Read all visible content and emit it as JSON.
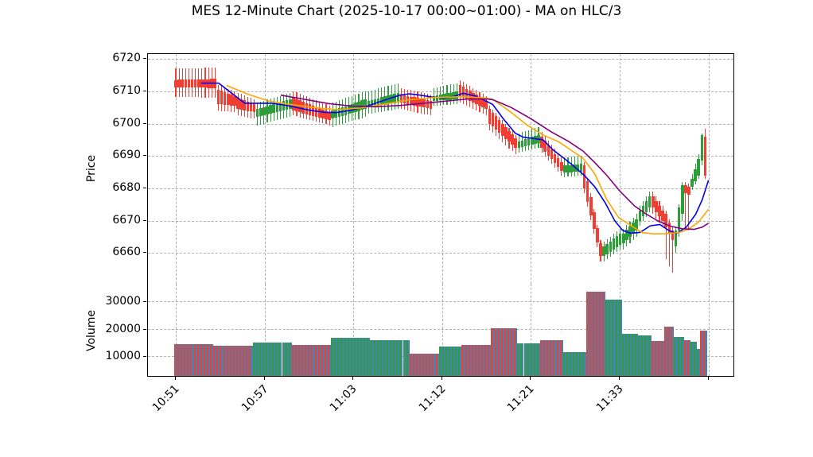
{
  "title": "MES 12-Minute Chart (2025-10-17 00:00~01:00) - MA on HLC/3",
  "price_axis": {
    "label": "Price",
    "ticks": [
      6720,
      6710,
      6700,
      6690,
      6680,
      6670,
      6660
    ],
    "ylim": [
      6650.5,
      6721.5
    ]
  },
  "volume_axis": {
    "label": "Volume",
    "ticks": [
      30000,
      20000,
      10000
    ],
    "ylim": [
      2900,
      36300
    ]
  },
  "x_axis": {
    "tick_labels": [
      "10:51",
      "10:57",
      "11:03",
      "11:12",
      "11:21",
      "11:33",
      ""
    ],
    "tick_indices": [
      0,
      27.17,
      54.33,
      81.5,
      108.67,
      135.83,
      163
    ]
  },
  "colors": {
    "up": "#2e9e3a",
    "down": "#f23d33",
    "volume_base": "#4682b4",
    "ma_fast": "#0000ee",
    "ma_mid": "#ffa500",
    "ma_slow": "#800080",
    "grid": "#b0b0b0",
    "text": "#000000"
  },
  "chart_data": {
    "type": "candlestick_volume",
    "title": "MES 12-Minute Chart (2025-10-17 00:00~01:00) - MA on HLC/3",
    "panels": [
      "Price",
      "Volume"
    ],
    "grid": true,
    "bars_total": 163,
    "price_runs": [
      {
        "n": 13,
        "c": "down",
        "b0": [
          6713.5,
          6711.3
        ],
        "b1": [
          6713.8,
          6711.0
        ],
        "wu": 3.5,
        "wd": 3.0
      },
      {
        "n": 6,
        "c": "down",
        "b0": [
          6710.5,
          6706.0
        ],
        "b1": [
          6708.5,
          6705.5
        ],
        "wu": 1.5,
        "wd": 2.0
      },
      {
        "n": 6,
        "c": "down",
        "b0": [
          6708.0,
          6704.5
        ],
        "b1": [
          6706.0,
          6703.5
        ],
        "wu": 1.5,
        "wd": 2.0
      },
      {
        "n": 11,
        "c": "up",
        "b0": [
          6704.5,
          6702.0
        ],
        "b1": [
          6707.5,
          6704.5
        ],
        "wu": 2.0,
        "wd": 2.5
      },
      {
        "n": 12,
        "c": "down",
        "b0": [
          6708.0,
          6704.0
        ],
        "b1": [
          6703.5,
          6701.0
        ],
        "wu": 2.0,
        "wd": 1.5
      },
      {
        "n": 11,
        "c": "up",
        "b0": [
          6704.0,
          6701.5
        ],
        "b1": [
          6707.5,
          6704.5
        ],
        "wu": 2.5,
        "wd": 2.5
      },
      {
        "n": 10,
        "c": "up",
        "b0": [
          6707.0,
          6705.0
        ],
        "b1": [
          6709.5,
          6706.5
        ],
        "wu": 3.0,
        "wd": 2.0
      },
      {
        "n": 10,
        "c": "down",
        "b0": [
          6709.0,
          6706.5
        ],
        "b1": [
          6707.0,
          6704.5
        ],
        "wu": 2.0,
        "wd": 2.0
      },
      {
        "n": 8,
        "c": "up",
        "b0": [
          6708.5,
          6707.0
        ],
        "b1": [
          6710.0,
          6707.5
        ],
        "wu": 2.5,
        "wd": 1.5
      },
      {
        "n": 9,
        "c": "down",
        "b0": [
          6712.0,
          6708.5
        ],
        "b1": [
          6707.0,
          6704.5
        ],
        "wu": 1.5,
        "wd": 2.0
      },
      {
        "n": 9,
        "c": "down",
        "b0": [
          6704.5,
          6700.0
        ],
        "b1": [
          6695.5,
          6692.5
        ],
        "wu": 1.0,
        "wd": 2.0
      },
      {
        "n": 7,
        "c": "up",
        "b0": [
          6694.5,
          6692.5
        ],
        "b1": [
          6696.5,
          6694.0
        ],
        "wu": 2.5,
        "wd": 1.5
      },
      {
        "n": 7,
        "c": "down",
        "b0": [
          6696.0,
          6692.5
        ],
        "b1": [
          6688.0,
          6685.5
        ],
        "wu": 1.5,
        "wd": 1.5
      },
      {
        "n": 6,
        "c": "up",
        "b0": [
          6687.0,
          6684.8
        ],
        "b1": [
          6687.5,
          6685.2
        ],
        "wu": 2.5,
        "wd": 1.3
      },
      {
        "n": 6,
        "c": "down",
        "b0": [
          6687.0,
          6680.0
        ],
        "b1": [
          6663.0,
          6659.0
        ],
        "wu": 1.0,
        "wd": 1.5
      },
      {
        "n": 6,
        "c": "up",
        "b0": [
          6662.0,
          6659.0
        ],
        "b1": [
          6666.0,
          6662.5
        ],
        "wu": 1.5,
        "wd": 1.5
      },
      {
        "n": 5,
        "c": "up",
        "b0": [
          6666.0,
          6663.0
        ],
        "b1": [
          6670.5,
          6667.0
        ],
        "wu": 1.5,
        "wd": 2.0
      },
      {
        "n": 4,
        "c": "up",
        "b0": [
          6673.0,
          6670.0
        ],
        "b1": [
          6677.5,
          6674.0
        ],
        "wu": 1.5,
        "wd": 1.5
      },
      {
        "n": 4,
        "c": "down",
        "b0": [
          6677.5,
          6674.0
        ],
        "b1": [
          6673.0,
          6670.0
        ],
        "wu": 1.5,
        "wd": 2.0
      },
      {
        "n": 3,
        "c": "down",
        "b0": [
          6672.0,
          6668.0
        ],
        "b1": [
          6667.0,
          6664.0
        ],
        "wu": 1.0,
        "wd": 10.0
      },
      {
        "n": 3,
        "c": "up",
        "b0": [
          6667.0,
          6662.0
        ],
        "b1": [
          6681.0,
          6672.0
        ],
        "wu": 1.0,
        "wd": 2.0
      },
      {
        "n": 2,
        "c": "down",
        "b0": [
          6681.0,
          6678.5
        ],
        "b1": [
          6680.5,
          6678.0
        ],
        "wu": 1.0,
        "wd": 11.0
      },
      {
        "n": 3,
        "c": "up",
        "b0": [
          6683.0,
          6680.5
        ],
        "b1": [
          6689.0,
          6684.0
        ],
        "wu": 1.5,
        "wd": 1.0
      },
      {
        "n": 1,
        "c": "up",
        "b0": [
          6696.4,
          6688.5
        ],
        "b1": [
          6696.4,
          6688.5
        ],
        "wu": 0.6,
        "wd": 1.5
      },
      {
        "n": 1,
        "c": "down",
        "b0": [
          6696.0,
          6684.0
        ],
        "b1": [
          6696.0,
          6684.0
        ],
        "wu": 2.5,
        "wd": 1.0
      }
    ],
    "volume_runs": [
      {
        "n": 12,
        "v": 14300,
        "c": "down"
      },
      {
        "n": 12,
        "v": 13800,
        "c": "down"
      },
      {
        "n": 12,
        "v": 15000,
        "c": "up"
      },
      {
        "n": 12,
        "v": 14200,
        "c": "down"
      },
      {
        "n": 12,
        "v": 16800,
        "c": "up"
      },
      {
        "n": 12,
        "v": 15900,
        "c": "up"
      },
      {
        "n": 9,
        "v": 11000,
        "c": "down"
      },
      {
        "n": 7,
        "v": 13500,
        "c": "up"
      },
      {
        "n": 9,
        "v": 14000,
        "c": "down"
      },
      {
        "n": 8,
        "v": 20300,
        "c": "down"
      },
      {
        "n": 7,
        "v": 14800,
        "c": "up"
      },
      {
        "n": 7,
        "v": 15900,
        "c": "down"
      },
      {
        "n": 7,
        "v": 11500,
        "c": "up"
      },
      {
        "n": 6,
        "v": 33400,
        "c": "down"
      },
      {
        "n": 5,
        "v": 30600,
        "c": "up"
      },
      {
        "n": 5,
        "v": 18200,
        "c": "up"
      },
      {
        "n": 4,
        "v": 17700,
        "c": "up"
      },
      {
        "n": 4,
        "v": 15600,
        "c": "down"
      },
      {
        "n": 3,
        "v": 20800,
        "c": "down"
      },
      {
        "n": 3,
        "v": 17000,
        "c": "up"
      },
      {
        "n": 2,
        "v": 16000,
        "c": "down"
      },
      {
        "n": 2,
        "v": 15300,
        "c": "up"
      },
      {
        "n": 1,
        "v": 12800,
        "c": "up"
      },
      {
        "n": 2,
        "v": 19400,
        "c": "down"
      }
    ],
    "moving_averages": [
      {
        "name": "ma-fast",
        "color_key": "ma_fast",
        "points": [
          [
            7.7,
            6712.5
          ],
          [
            13.1,
            6712.5
          ],
          [
            21.1,
            6706.3
          ],
          [
            29.6,
            6706.3
          ],
          [
            34.5,
            6705.5
          ],
          [
            40.6,
            6704.2
          ],
          [
            45.4,
            6703.5
          ],
          [
            49.1,
            6703.4
          ],
          [
            54,
            6704.2
          ],
          [
            58.8,
            6705.5
          ],
          [
            63.7,
            6707.2
          ],
          [
            68.6,
            6708.8
          ],
          [
            71.5,
            6709.2
          ],
          [
            74.7,
            6708.8
          ],
          [
            78.3,
            6708.2
          ],
          [
            82,
            6708.0
          ],
          [
            85.1,
            6708.4
          ],
          [
            88,
            6709.4
          ],
          [
            91.7,
            6708.5
          ],
          [
            95.3,
            6706.8
          ],
          [
            97,
            6705.9
          ],
          [
            100.2,
            6701.5
          ],
          [
            103.9,
            6697.0
          ],
          [
            106.3,
            6695.8
          ],
          [
            109.4,
            6695.4
          ],
          [
            112.4,
            6695.0
          ],
          [
            115.3,
            6692.0
          ],
          [
            118.5,
            6689.5
          ],
          [
            121.6,
            6687.0
          ],
          [
            125,
            6684.0
          ],
          [
            128.2,
            6680.5
          ],
          [
            131.4,
            6675.5
          ],
          [
            134.3,
            6670.0
          ],
          [
            136.7,
            6667.0
          ],
          [
            139.2,
            6666.1
          ],
          [
            142.1,
            6666.4
          ],
          [
            145.2,
            6668.4
          ],
          [
            148.1,
            6668.8
          ],
          [
            150.8,
            6667.0
          ],
          [
            153.2,
            6666.0
          ],
          [
            156.2,
            6668.0
          ],
          [
            159.1,
            6672.0
          ],
          [
            161.1,
            6676.5
          ],
          [
            163,
            6682.5
          ]
        ]
      },
      {
        "name": "ma-mid",
        "color_key": "ma_mid",
        "points": [
          [
            15.5,
            6711.8
          ],
          [
            22.3,
            6709.0
          ],
          [
            28.4,
            6707.0
          ],
          [
            34.5,
            6706.0
          ],
          [
            41.8,
            6705.0
          ],
          [
            49.1,
            6704.3
          ],
          [
            56.4,
            6704.8
          ],
          [
            63.7,
            6706.0
          ],
          [
            71,
            6707.3
          ],
          [
            79.5,
            6708.1
          ],
          [
            88,
            6708.3
          ],
          [
            94.1,
            6708.0
          ],
          [
            97,
            6707.5
          ],
          [
            102.6,
            6703.5
          ],
          [
            107.5,
            6699.5
          ],
          [
            112.4,
            6696.5
          ],
          [
            117.3,
            6694.3
          ],
          [
            120.9,
            6691.8
          ],
          [
            124.6,
            6689.3
          ],
          [
            128.2,
            6684.5
          ],
          [
            131.9,
            6676.5
          ],
          [
            135.5,
            6671.0
          ],
          [
            139.2,
            6668.5
          ],
          [
            142.8,
            6666.3
          ],
          [
            146.5,
            6665.9
          ],
          [
            150.1,
            6666.0
          ],
          [
            153.8,
            6666.3
          ],
          [
            156.7,
            6667.3
          ],
          [
            159.9,
            6669.5
          ],
          [
            163,
            6673.5
          ]
        ]
      },
      {
        "name": "ma-slow",
        "color_key": "ma_slow",
        "points": [
          [
            32.1,
            6708.8
          ],
          [
            39.4,
            6707.5
          ],
          [
            46.7,
            6706.2
          ],
          [
            54,
            6705.4
          ],
          [
            61.3,
            6705.2
          ],
          [
            68.6,
            6705.6
          ],
          [
            75.9,
            6706.3
          ],
          [
            83.2,
            6707.0
          ],
          [
            89.3,
            6707.6
          ],
          [
            95.3,
            6707.6
          ],
          [
            97,
            6707.4
          ],
          [
            102.6,
            6705.0
          ],
          [
            108.7,
            6701.5
          ],
          [
            114.8,
            6697.5
          ],
          [
            120.2,
            6694.5
          ],
          [
            124.6,
            6691.5
          ],
          [
            128.2,
            6688.0
          ],
          [
            131.9,
            6684.0
          ],
          [
            136,
            6679.0
          ],
          [
            140.4,
            6674.5
          ],
          [
            144,
            6672.0
          ],
          [
            147.7,
            6669.8
          ],
          [
            151.3,
            6668.3
          ],
          [
            155,
            6667.5
          ],
          [
            158.6,
            6667.3
          ],
          [
            161.1,
            6668.0
          ],
          [
            163,
            6669.2
          ]
        ]
      }
    ]
  }
}
